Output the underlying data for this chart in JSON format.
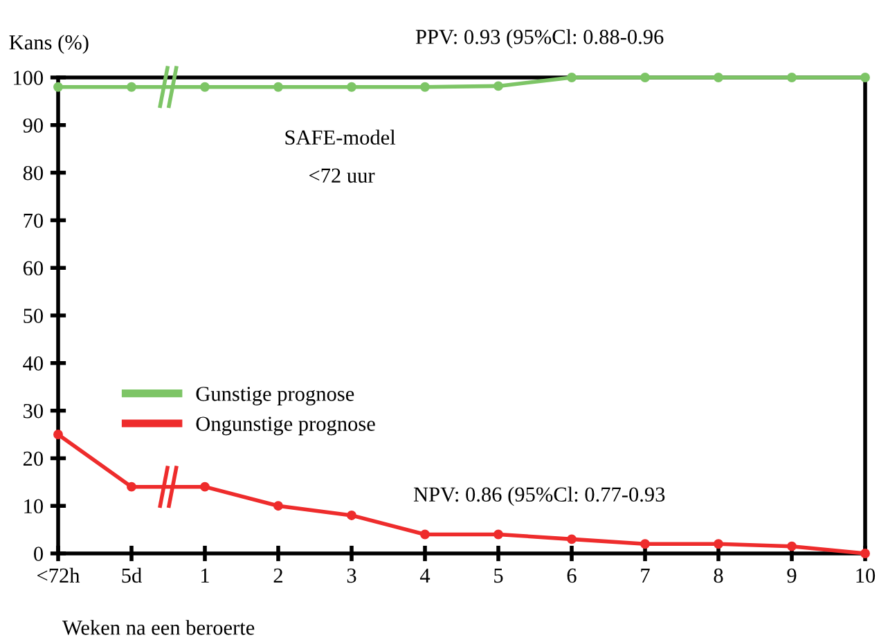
{
  "chart_data": {
    "type": "line",
    "ylabel": "Kans (%)",
    "xlabel": "Weken na een beroerte",
    "categories": [
      "<72h",
      "5d",
      "1",
      "2",
      "3",
      "4",
      "5",
      "6",
      "7",
      "8",
      "9",
      "10"
    ],
    "series": [
      {
        "name": "Gunstige prognose",
        "color": "#7dc566",
        "values": [
          98,
          98,
          98,
          98,
          98,
          98,
          98.2,
          100,
          100,
          100,
          100,
          100
        ]
      },
      {
        "name": "Ongunstige prognose",
        "color": "#ee2c2c",
        "values": [
          25,
          14,
          14,
          10,
          8,
          4,
          4,
          3,
          2,
          2,
          1.5,
          0
        ]
      }
    ],
    "ylim": [
      0,
      100
    ],
    "yticks": [
      0,
      10,
      20,
      30,
      40,
      50,
      60,
      70,
      80,
      90,
      100
    ],
    "annotations": [
      "PPV: 0.93 (95%Cl: 0.88-0.96",
      "SAFE-model",
      "<72 uur",
      "NPV: 0.86 (95%Cl: 0.77-0.93"
    ],
    "legend": "center left",
    "marker": "circle",
    "line_style": "solid",
    "grid": false
  }
}
